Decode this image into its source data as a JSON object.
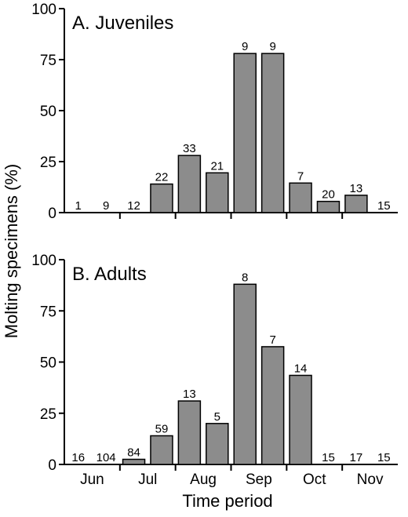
{
  "chart_data": [
    {
      "type": "bar",
      "title": "A. Juveniles",
      "x": [
        1,
        2,
        3,
        4,
        5,
        6,
        7,
        8,
        9,
        10,
        11,
        12
      ],
      "values": [
        0,
        0,
        0,
        14,
        28,
        19.5,
        78,
        78,
        14.5,
        5.5,
        8.5,
        0
      ],
      "data_labels": [
        "1",
        "9",
        "12",
        "22",
        "33",
        "21",
        "9",
        "9",
        "7",
        "20",
        "13",
        "15"
      ],
      "ylim": [
        0,
        100
      ],
      "yticks": [
        "0",
        "25",
        "50",
        "75",
        "100"
      ]
    },
    {
      "type": "bar",
      "title": "B. Adults",
      "x": [
        1,
        2,
        3,
        4,
        5,
        6,
        7,
        8,
        9,
        10,
        11,
        12
      ],
      "values": [
        0,
        0,
        2.5,
        14,
        31,
        20,
        88,
        57.5,
        43.5,
        0,
        0,
        0
      ],
      "data_labels": [
        "16",
        "104",
        "84",
        "59",
        "13",
        "5",
        "8",
        "7",
        "14",
        "15",
        "17",
        "15"
      ],
      "ylim": [
        0,
        100
      ],
      "yticks": [
        "0",
        "25",
        "50",
        "75",
        "100"
      ],
      "categories": [
        "Jun",
        "Jul",
        "Aug",
        "Sep",
        "Oct",
        "Nov"
      ]
    }
  ],
  "ylabel": "Molting specimens  (%)",
  "xlabel": "Time period"
}
